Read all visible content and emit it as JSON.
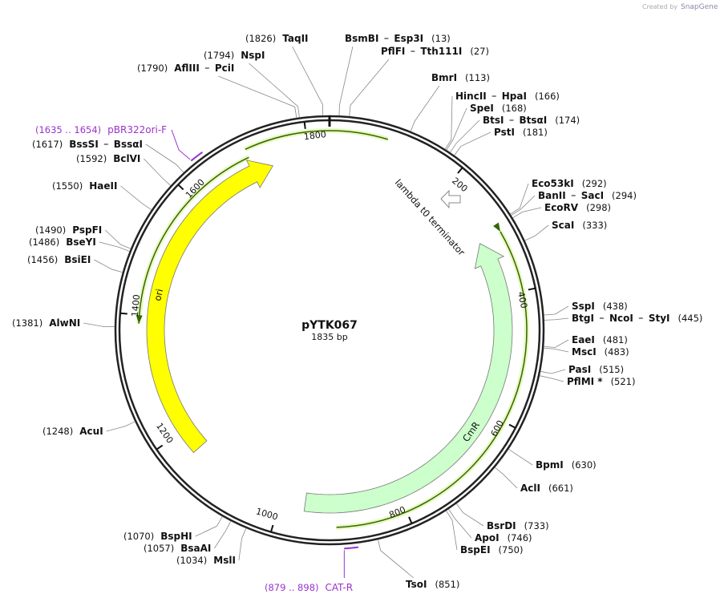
{
  "header": {
    "credit": "Created by",
    "brand": "SnapGene"
  },
  "plasmid": {
    "name": "pYTK067",
    "length": "1835 bp"
  },
  "ruler": {
    "ticks": [
      200,
      400,
      600,
      800,
      1000,
      1200,
      1400,
      1600,
      1800
    ]
  },
  "features": [
    {
      "name": "ori"
    },
    {
      "name": "CmR"
    },
    {
      "name": "lambda t0 terminator"
    }
  ],
  "primers": [
    {
      "site": "(1635 .. 1654)",
      "name": "pBR322ori-F"
    },
    {
      "site": "(879 .. 898)",
      "name": "CAT-R"
    }
  ],
  "enzymes": [
    {
      "names": [
        "TaqII"
      ],
      "site": "(1826)"
    },
    {
      "names": [
        "BsmBI",
        "Esp3I"
      ],
      "site": "(13)"
    },
    {
      "names": [
        "PflFI",
        "Tth111I"
      ],
      "site": "(27)"
    },
    {
      "names": [
        "NspI"
      ],
      "site": "(1794)"
    },
    {
      "names": [
        "AflIII",
        "PciI"
      ],
      "site": "(1790)"
    },
    {
      "names": [
        "BmrI"
      ],
      "site": "(113)"
    },
    {
      "names": [
        "HincII",
        "HpaI"
      ],
      "site": "(166)"
    },
    {
      "names": [
        "SpeI"
      ],
      "site": "(168)"
    },
    {
      "names": [
        "BtsI",
        "BtsαI"
      ],
      "site": "(174)"
    },
    {
      "names": [
        "PstI"
      ],
      "site": "(181)"
    },
    {
      "names": [
        "Eco53kI"
      ],
      "site": "(292)"
    },
    {
      "names": [
        "BanII",
        "SacI"
      ],
      "site": "(294)"
    },
    {
      "names": [
        "EcoRV"
      ],
      "site": "(298)"
    },
    {
      "names": [
        "ScaI"
      ],
      "site": "(333)"
    },
    {
      "names": [
        "SspI"
      ],
      "site": "(438)"
    },
    {
      "names": [
        "BtgI",
        "NcoI",
        "StyI"
      ],
      "site": "(445)"
    },
    {
      "names": [
        "EaeI"
      ],
      "site": "(481)"
    },
    {
      "names": [
        "MscI"
      ],
      "site": "(483)"
    },
    {
      "names": [
        "PasI"
      ],
      "site": "(515)"
    },
    {
      "names": [
        "PflMI *"
      ],
      "site": "(521)"
    },
    {
      "names": [
        "BpmI"
      ],
      "site": "(630)"
    },
    {
      "names": [
        "AclI"
      ],
      "site": "(661)"
    },
    {
      "names": [
        "BsrDI"
      ],
      "site": "(733)"
    },
    {
      "names": [
        "ApoI"
      ],
      "site": "(746)"
    },
    {
      "names": [
        "BspEI"
      ],
      "site": "(750)"
    },
    {
      "names": [
        "TsoI"
      ],
      "site": "(851)"
    },
    {
      "names": [
        "BspHI"
      ],
      "site": "(1070)"
    },
    {
      "names": [
        "BsaAI"
      ],
      "site": "(1057)"
    },
    {
      "names": [
        "MslI"
      ],
      "site": "(1034)"
    },
    {
      "names": [
        "AcuI"
      ],
      "site": "(1248)"
    },
    {
      "names": [
        "AlwNI"
      ],
      "site": "(1381)"
    },
    {
      "names": [
        "BsiEI"
      ],
      "site": "(1456)"
    },
    {
      "names": [
        "BseYI"
      ],
      "site": "(1486)"
    },
    {
      "names": [
        "PspFI"
      ],
      "site": "(1490)"
    },
    {
      "names": [
        "HaeII"
      ],
      "site": "(1550)"
    },
    {
      "names": [
        "BclVI"
      ],
      "site": "(1592)"
    },
    {
      "names": [
        "BssSI",
        "BssαI"
      ],
      "site": "(1617)"
    }
  ]
}
